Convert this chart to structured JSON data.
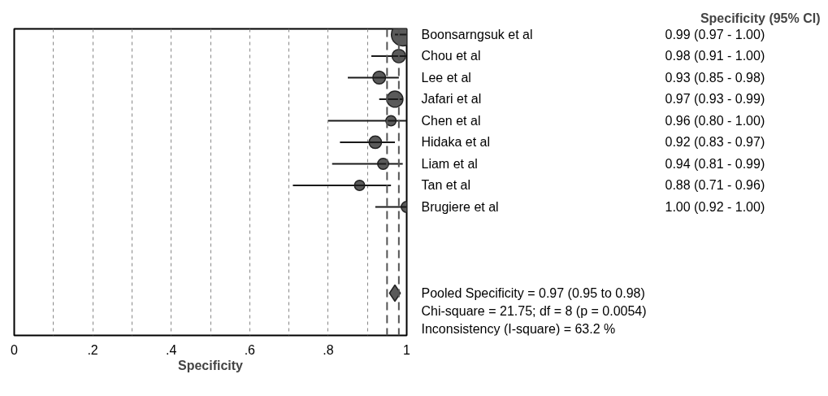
{
  "chart_data": {
    "type": "scatter",
    "orientation": "horizontal",
    "xlabel": "Specificity",
    "categories": [
      "Boonsarngsuk et al",
      "Chou et al",
      "Lee et al",
      "Jafari et al",
      "Chen et al",
      "Hidaka et al",
      "Liam et al",
      "Tan et al",
      "Brugiere et al",
      null,
      null,
      null,
      null
    ],
    "xlim": [
      0,
      1
    ],
    "xticks": [
      0,
      {
        "value": 0.1,
        "label": null
      },
      {
        "value": 0.2,
        "label": ".2"
      },
      {
        "value": 0.3,
        "label": null
      },
      {
        "value": 0.4,
        "label": ".4"
      },
      {
        "value": 0.5,
        "label": null
      },
      {
        "value": 0.6,
        "label": ".6"
      },
      {
        "value": 0.7,
        "label": null
      },
      {
        "value": 0.8,
        "label": ".8"
      },
      {
        "value": 0.9,
        "label": null
      },
      1
    ],
    "grid": "x",
    "tick_labels": "x",
    "marker": "circle",
    "series": [
      {
        "type": "bubble",
        "color": "#5a5a5a",
        "values": [
          0.99,
          0.98,
          0.93,
          0.97,
          0.96,
          0.92,
          0.94,
          0.88,
          1.0,
          null,
          null,
          null,
          null
        ],
        "errors": [
          [
            0.97,
            1.0
          ],
          [
            0.91,
            1.0
          ],
          [
            0.85,
            0.98
          ],
          [
            0.93,
            0.99
          ],
          [
            0.8,
            1.0
          ],
          [
            0.83,
            0.97
          ],
          [
            0.81,
            0.99
          ],
          [
            0.71,
            0.96
          ],
          [
            0.92,
            1.0
          ],
          null,
          null,
          null,
          null
        ],
        "sizes": [
          1,
          0.35,
          0.31,
          0.5,
          0.2,
          0.3,
          0.23,
          0.2,
          0.23,
          null,
          null,
          null,
          null
        ],
        "value_labels": [
          "0.99   (0.97 - 1.00)",
          "0.98   (0.91 - 1.00)",
          "0.93   (0.85 - 0.98)",
          "0.97   (0.93 - 0.99)",
          "0.96   (0.80 - 1.00)",
          "0.92   (0.83 - 0.97)",
          "0.94   (0.81 - 0.99)",
          "0.88   (0.71 - 0.96)",
          "1.00   (0.92 - 1.00)",
          null,
          null,
          null,
          null
        ]
      },
      {
        "marker": "diamond",
        "color": "#5a5a5a",
        "values": [
          null,
          null,
          null,
          null,
          null,
          null,
          null,
          null,
          null,
          null,
          null,
          null,
          0.97
        ],
        "value_labels": [
          null,
          null,
          null,
          null,
          null,
          null,
          null,
          null,
          null,
          null,
          null,
          null,
          "Pooled Specificity = 0.97 (0.95 to 0.98)"
        ]
      }
    ],
    "ref_lines": [
      {
        "axis": "x",
        "value": 0.95,
        "line_style": "dashed",
        "color": "#555555"
      },
      {
        "axis": "x",
        "value": 0.98,
        "line_style": "dashed",
        "color": "#555555"
      }
    ],
    "annotations": [
      "Specificity (95% CI)",
      "Chi-square = 21.75; df =  8 (p = 0.0054)",
      "Inconsistency (I-square) = 63.2 %"
    ]
  }
}
